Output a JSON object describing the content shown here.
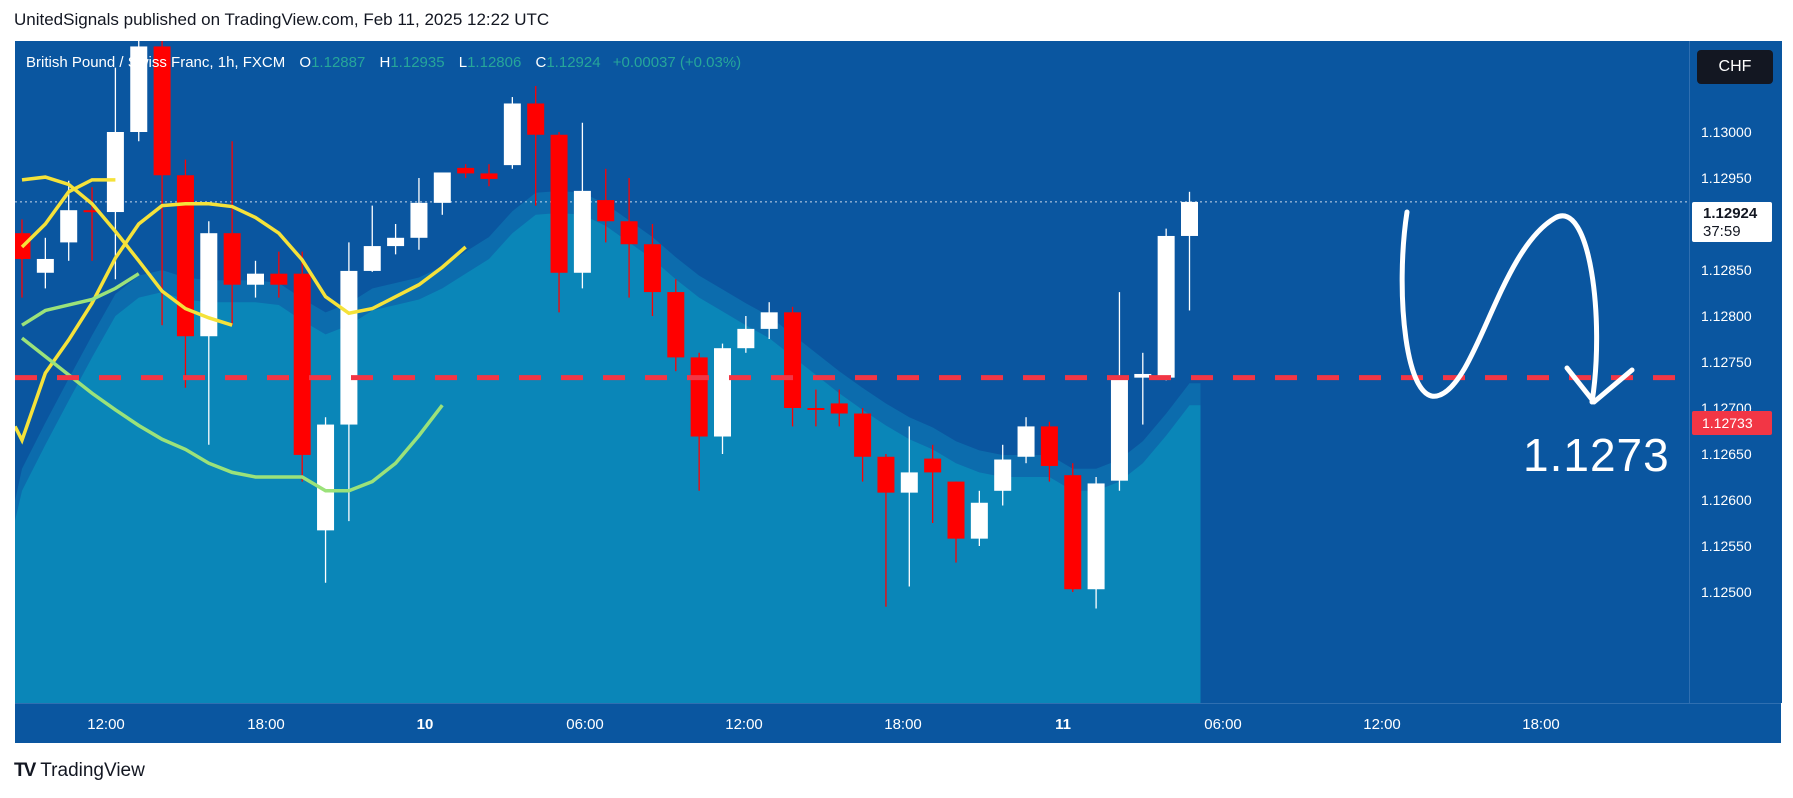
{
  "header": {
    "published_line": "UnitedSignals published on TradingView.com, Feb 11, 2025 12:22 UTC"
  },
  "legend": {
    "symbol": "British Pound / Swiss Franc, 1h, FXCM",
    "o_label": "O",
    "o": "1.12887",
    "h_label": "H",
    "h": "1.12935",
    "l_label": "L",
    "l": "1.12806",
    "c_label": "C",
    "c": "1.12924",
    "change": "+0.00037 (+0.03%)"
  },
  "price_scale": {
    "currency": "CHF",
    "ticks": [
      "1.13000",
      "1.12950",
      "1.12850",
      "1.12800",
      "1.12750",
      "1.12700",
      "1.12650",
      "1.12600",
      "1.12550",
      "1.12500"
    ],
    "last_price": "1.12924",
    "countdown": "37:59",
    "level_label": "1.12733"
  },
  "annotation": {
    "target_text": "1.1273"
  },
  "time_axis": {
    "labels": [
      "12:00",
      "18:00",
      "10",
      "06:00",
      "12:00",
      "18:00",
      "11",
      "06:00",
      "12:00",
      "18:00"
    ]
  },
  "footer": {
    "brand": "TradingView"
  },
  "colors": {
    "background": "#0a56a0",
    "up_candle": "#ffffff",
    "down_candle": "#ff0000",
    "ma_yellow": "#f5e23a",
    "ma_green": "#9be27a",
    "area_fill": "#0a86b8",
    "level_line": "#f23645"
  },
  "chart_data": {
    "type": "candlestick",
    "symbol": "British Pound / Swiss Franc, 1h, FXCM",
    "y_ticks": [
      1.13,
      1.1295,
      1.1285,
      1.128,
      1.1275,
      1.127,
      1.1265,
      1.126,
      1.1255,
      1.125
    ],
    "ylim": [
      1.1248,
      1.1306
    ],
    "x_labels": [
      "12:00",
      "18:00",
      "10",
      "06:00",
      "12:00",
      "18:00",
      "11",
      "06:00",
      "12:00",
      "18:00"
    ],
    "horizontal_level": 1.12733,
    "candles": [
      {
        "o": 1.1289,
        "h": 1.12905,
        "l": 1.1282,
        "c": 1.12862
      },
      {
        "o": 1.12847,
        "h": 1.12885,
        "l": 1.1283,
        "c": 1.12862
      },
      {
        "o": 1.1288,
        "h": 1.12947,
        "l": 1.1286,
        "c": 1.12915
      },
      {
        "o": 1.12915,
        "h": 1.1294,
        "l": 1.1286,
        "c": 1.12913
      },
      {
        "o": 1.12913,
        "h": 1.1307,
        "l": 1.1284,
        "c": 1.13
      },
      {
        "o": 1.13,
        "h": 1.1318,
        "l": 1.1299,
        "c": 1.13093
      },
      {
        "o": 1.13093,
        "h": 1.1311,
        "l": 1.1279,
        "c": 1.12953
      },
      {
        "o": 1.12953,
        "h": 1.1297,
        "l": 1.12722,
        "c": 1.12778
      },
      {
        "o": 1.12778,
        "h": 1.12903,
        "l": 1.1266,
        "c": 1.1289
      },
      {
        "o": 1.1289,
        "h": 1.1299,
        "l": 1.1279,
        "c": 1.12834
      },
      {
        "o": 1.12834,
        "h": 1.1286,
        "l": 1.1282,
        "c": 1.12846
      },
      {
        "o": 1.12846,
        "h": 1.1287,
        "l": 1.1282,
        "c": 1.12834
      },
      {
        "o": 1.12846,
        "h": 1.1287,
        "l": 1.1262,
        "c": 1.12649
      },
      {
        "o": 1.12567,
        "h": 1.1269,
        "l": 1.1251,
        "c": 1.12682
      },
      {
        "o": 1.12682,
        "h": 1.1288,
        "l": 1.12577,
        "c": 1.12849
      },
      {
        "o": 1.12849,
        "h": 1.1292,
        "l": 1.12848,
        "c": 1.12876
      },
      {
        "o": 1.12876,
        "h": 1.129,
        "l": 1.12867,
        "c": 1.12885
      },
      {
        "o": 1.12885,
        "h": 1.1295,
        "l": 1.12872,
        "c": 1.12923
      },
      {
        "o": 1.12923,
        "h": 1.12955,
        "l": 1.1291,
        "c": 1.12956
      },
      {
        "o": 1.12961,
        "h": 1.12965,
        "l": 1.1295,
        "c": 1.12955
      },
      {
        "o": 1.12955,
        "h": 1.12965,
        "l": 1.12941,
        "c": 1.12949
      },
      {
        "o": 1.12964,
        "h": 1.13038,
        "l": 1.1296,
        "c": 1.13031
      },
      {
        "o": 1.13031,
        "h": 1.1305,
        "l": 1.1292,
        "c": 1.12997
      },
      {
        "o": 1.12997,
        "h": 1.13,
        "l": 1.12804,
        "c": 1.12847
      },
      {
        "o": 1.12847,
        "h": 1.1301,
        "l": 1.1283,
        "c": 1.12936
      },
      {
        "o": 1.12926,
        "h": 1.1296,
        "l": 1.1288,
        "c": 1.12903
      },
      {
        "o": 1.12903,
        "h": 1.1295,
        "l": 1.1282,
        "c": 1.12878
      },
      {
        "o": 1.12878,
        "h": 1.129,
        "l": 1.128,
        "c": 1.12826
      },
      {
        "o": 1.12826,
        "h": 1.1284,
        "l": 1.1274,
        "c": 1.12755
      },
      {
        "o": 1.12755,
        "h": 1.1276,
        "l": 1.1261,
        "c": 1.12669
      },
      {
        "o": 1.12669,
        "h": 1.1277,
        "l": 1.1265,
        "c": 1.12765
      },
      {
        "o": 1.12765,
        "h": 1.128,
        "l": 1.1276,
        "c": 1.12786
      },
      {
        "o": 1.12786,
        "h": 1.12815,
        "l": 1.12775,
        "c": 1.12804
      },
      {
        "o": 1.12804,
        "h": 1.1281,
        "l": 1.1268,
        "c": 1.127
      },
      {
        "o": 1.127,
        "h": 1.1272,
        "l": 1.1268,
        "c": 1.12699
      },
      {
        "o": 1.12705,
        "h": 1.1272,
        "l": 1.1268,
        "c": 1.12694
      },
      {
        "o": 1.12694,
        "h": 1.127,
        "l": 1.1262,
        "c": 1.12647
      },
      {
        "o": 1.12647,
        "h": 1.1265,
        "l": 1.12484,
        "c": 1.12608
      },
      {
        "o": 1.12608,
        "h": 1.1268,
        "l": 1.12506,
        "c": 1.1263
      },
      {
        "o": 1.12645,
        "h": 1.1266,
        "l": 1.12575,
        "c": 1.1263
      },
      {
        "o": 1.1262,
        "h": 1.1262,
        "l": 1.12532,
        "c": 1.12558
      },
      {
        "o": 1.12558,
        "h": 1.1261,
        "l": 1.1255,
        "c": 1.12597
      },
      {
        "o": 1.1261,
        "h": 1.1266,
        "l": 1.12594,
        "c": 1.12644
      },
      {
        "o": 1.12647,
        "h": 1.1269,
        "l": 1.1264,
        "c": 1.1268
      },
      {
        "o": 1.1268,
        "h": 1.12685,
        "l": 1.1262,
        "c": 1.12637
      },
      {
        "o": 1.12627,
        "h": 1.1264,
        "l": 1.125,
        "c": 1.12503
      },
      {
        "o": 1.12503,
        "h": 1.12625,
        "l": 1.12482,
        "c": 1.12618
      },
      {
        "o": 1.12621,
        "h": 1.12826,
        "l": 1.1261,
        "c": 1.12733
      },
      {
        "o": 1.12733,
        "h": 1.1276,
        "l": 1.12682,
        "c": 1.12737
      },
      {
        "o": 1.12733,
        "h": 1.12895,
        "l": 1.1273,
        "c": 1.12887
      },
      {
        "o": 1.12887,
        "h": 1.12935,
        "l": 1.12806,
        "c": 1.12924
      }
    ],
    "ma_yellow": [
      1.12665,
      1.12738,
      1.12774,
      1.12814,
      1.12863,
      1.129,
      1.1292,
      1.12922,
      1.12922,
      1.12919,
      1.12907,
      1.1289,
      1.12861,
      1.12821,
      1.12803,
      1.12808,
      1.12821,
      1.12834,
      1.12853,
      1.12875,
      1.129,
      1.12935,
      1.12948,
      1.12948,
      1.12951,
      1.12943,
      1.12922,
      1.12892,
      1.1286,
      1.12827,
      1.12808,
      1.12798,
      1.1279,
      1.1277,
      1.1275,
      1.1273,
      1.1271,
      1.1269,
      1.12673,
      1.1266,
      1.12645,
      1.1263,
      1.12625,
      1.12625,
      1.12625,
      1.1261,
      1.1261,
      1.1262,
      1.1264,
      1.1267,
      1.12703
    ],
    "ma_green": [
      1.1261,
      1.1266,
      1.12708,
      1.12755,
      1.128,
      1.1282,
      1.12826,
      1.12818,
      1.12815,
      1.12815,
      1.12815,
      1.12812,
      1.12795,
      1.1278,
      1.1279,
      1.12806,
      1.12812,
      1.12818,
      1.1283,
      1.12846,
      1.12862,
      1.1289,
      1.1291,
      1.12912,
      1.1291,
      1.12898,
      1.1288,
      1.12862,
      1.1284,
      1.1282,
      1.12805,
      1.1279,
      1.12776,
      1.12756,
      1.12736,
      1.12716,
      1.12698,
      1.12681,
      1.12666,
      1.12655,
      1.1264,
      1.1263,
      1.12625,
      1.12625,
      1.12625,
      1.1261,
      1.1261,
      1.1262,
      1.1264,
      1.1267,
      1.12703
    ]
  }
}
